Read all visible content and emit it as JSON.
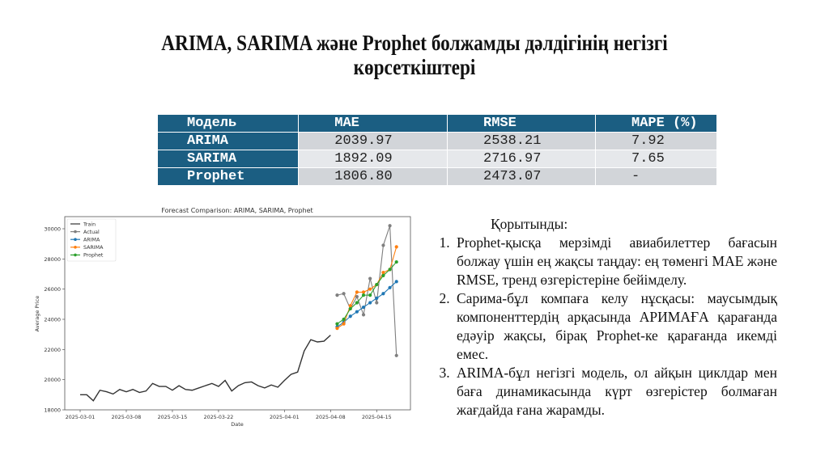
{
  "slide": {
    "title": "ARIMA, SARIMA және Prophet болжамды дәлдігінің негізгі көрсеткіштері"
  },
  "table": {
    "headers": [
      "Модель",
      "MAE",
      "RMSE",
      "MAPE (%)"
    ],
    "rows": [
      {
        "model": "ARIMA",
        "mae": "2039.97",
        "rmse": "2538.21",
        "mape": "7.92"
      },
      {
        "model": "SARIMA",
        "mae": "1892.09",
        "rmse": "2716.97",
        "mape": "7.65"
      },
      {
        "model": "Prophet",
        "mae": "1806.80",
        "rmse": "2473.07",
        "mape": "-"
      }
    ],
    "colors": {
      "header_bg": "#1b5e82",
      "row_odd": "#d2d5d9",
      "row_even": "#e6e8eb"
    }
  },
  "conclusions": {
    "heading": "Қорытынды:",
    "items": [
      "Prophet-қысқа мерзімді авиабилеттер бағасын болжау үшін ең жақсы таңдау: ең төменгі MAE және RMSE, тренд өзгерістеріне бейімделу.",
      "Сарима-бұл компаға келу нұсқасы: маусымдық компоненттердің арқасында АРИМАҒА қарағанда едәуір жақсы, бірақ Prophet-ке қарағанда икемді емес.",
      "ARIMA-бұл негізгі модель, ол айқын циклдар мен баға динамикасында күрт өзгерістер болмаған жағдайда ғана жарамды."
    ]
  },
  "chart_data": {
    "type": "line",
    "title": "Forecast Comparison: ARIMA, SARIMA, Prophet",
    "xlabel": "Date",
    "ylabel": "Average Price",
    "ylim": [
      18000,
      30700
    ],
    "yticks": [
      18000,
      20000,
      22000,
      24000,
      26000,
      28000,
      30000
    ],
    "xticks": [
      "2025-03-01",
      "2025-03-08",
      "2025-03-15",
      "2025-03-22",
      "2025-04-01",
      "2025-04-08",
      "2025-04-15"
    ],
    "legend_position": "upper left",
    "grid": false,
    "series": [
      {
        "name": "Train",
        "color": "#333333",
        "marker": false,
        "start_date": "2025-03-01",
        "values": [
          19000,
          19000,
          18600,
          19300,
          19200,
          19050,
          19350,
          19200,
          19350,
          19150,
          19250,
          19750,
          19550,
          19550,
          19300,
          19600,
          19350,
          19300,
          19450,
          19600,
          19750,
          19550,
          19950,
          19250,
          19600,
          19800,
          19850,
          19600,
          19450,
          19650,
          19500,
          19950,
          20350,
          20500,
          21900,
          22650,
          22500,
          22550,
          22950
        ]
      },
      {
        "name": "Actual",
        "color": "#7f7f7f",
        "marker": true,
        "start_date": "2025-04-09",
        "values": [
          25600,
          25700,
          24700,
          25500,
          24300,
          26700,
          25100,
          28900,
          30200,
          21600
        ]
      },
      {
        "name": "ARIMA",
        "color": "#1f77b4",
        "marker": true,
        "start_date": "2025-04-09",
        "values": [
          23500,
          23800,
          24200,
          24500,
          24800,
          25100,
          25400,
          25700,
          26100,
          26500
        ]
      },
      {
        "name": "SARIMA",
        "color": "#ff7f0e",
        "marker": true,
        "start_date": "2025-04-09",
        "values": [
          23400,
          23700,
          24900,
          25800,
          25800,
          26000,
          26300,
          27100,
          27300,
          28800
        ]
      },
      {
        "name": "Prophet",
        "color": "#2ca02c",
        "marker": true,
        "start_date": "2025-04-09",
        "values": [
          23700,
          24000,
          24700,
          25100,
          25600,
          25600,
          26300,
          26900,
          27300,
          27800
        ]
      }
    ]
  }
}
